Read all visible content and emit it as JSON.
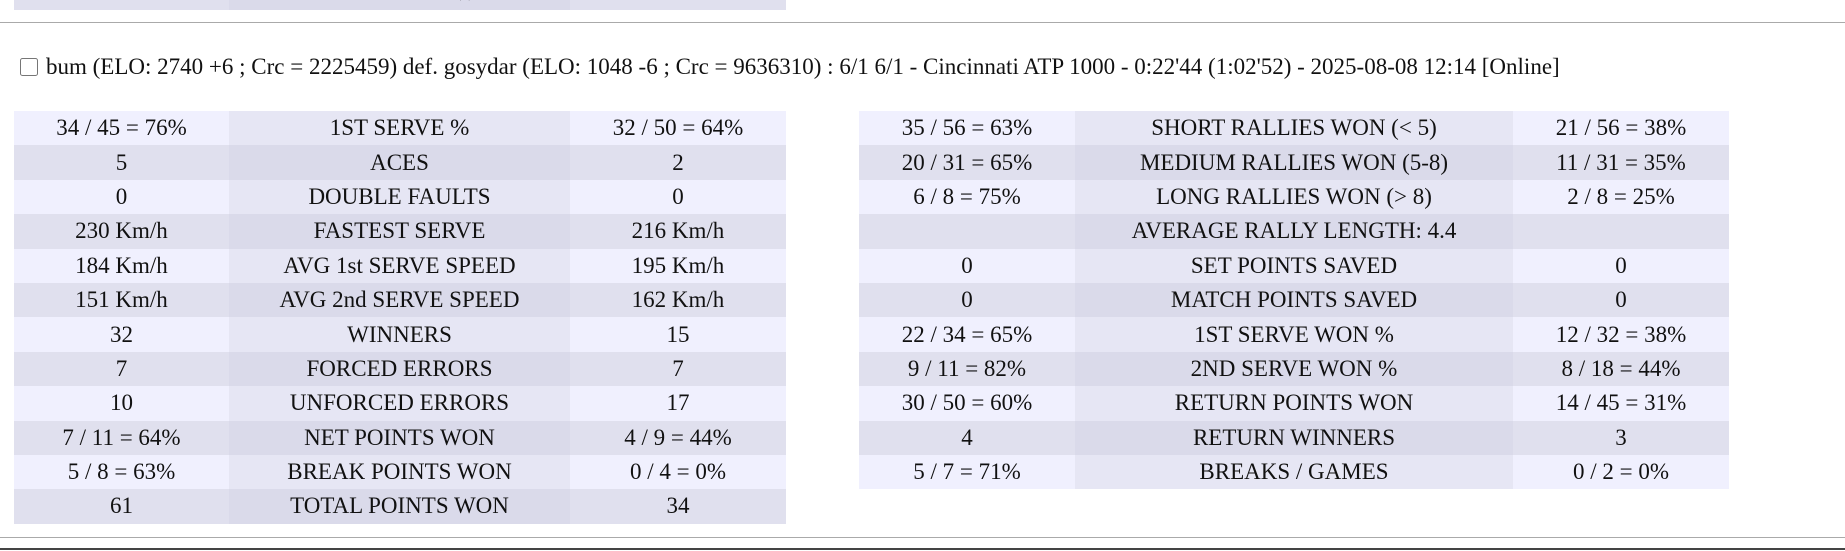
{
  "previous_tail": {
    "label": "TOTAL POINTS WON"
  },
  "header": {
    "text": "bum (ELO: 2740 +6 ; Crc = 2225459) def. gosydar (ELO: 1048 -6 ; Crc = 9636310) : 6/1 6/1 - Cincinnati ATP 1000 - 0:22'44 (1:02'52) - 2025-08-08 12:14 [Online]"
  },
  "left_table": {
    "rows": [
      [
        "34 / 45 = 76%",
        "1ST SERVE %",
        "32 / 50 = 64%"
      ],
      [
        "5",
        "ACES",
        "2"
      ],
      [
        "0",
        "DOUBLE FAULTS",
        "0"
      ],
      [
        "230 Km/h",
        "FASTEST SERVE",
        "216 Km/h"
      ],
      [
        "184 Km/h",
        "AVG 1st SERVE SPEED",
        "195 Km/h"
      ],
      [
        "151 Km/h",
        "AVG 2nd SERVE SPEED",
        "162 Km/h"
      ],
      [
        "32",
        "WINNERS",
        "15"
      ],
      [
        "7",
        "FORCED ERRORS",
        "7"
      ],
      [
        "10",
        "UNFORCED ERRORS",
        "17"
      ],
      [
        "7 / 11 = 64%",
        "NET POINTS WON",
        "4 / 9 = 44%"
      ],
      [
        "5 / 8 = 63%",
        "BREAK POINTS WON",
        "0 / 4 = 0%"
      ],
      [
        "61",
        "TOTAL POINTS WON",
        "34"
      ]
    ]
  },
  "right_table": {
    "rows": [
      [
        "35 / 56 = 63%",
        "SHORT RALLIES WON (< 5)",
        "21 / 56 = 38%"
      ],
      [
        "20 / 31 = 65%",
        "MEDIUM RALLIES WON (5-8)",
        "11 / 31 = 35%"
      ],
      [
        "6 / 8 = 75%",
        "LONG RALLIES WON (> 8)",
        "2 / 8 = 25%"
      ],
      [
        "AVERAGE RALLY LENGTH: 4.4"
      ],
      [
        "0",
        "SET POINTS SAVED",
        "0"
      ],
      [
        "0",
        "MATCH POINTS SAVED",
        "0"
      ],
      [
        "22 / 34 = 65%",
        "1ST SERVE WON %",
        "12 / 32 = 38%"
      ],
      [
        "9 / 11 = 82%",
        "2ND SERVE WON %",
        "8 / 18 = 44%"
      ],
      [
        "30 / 50 = 60%",
        "RETURN POINTS WON",
        "14 / 45 = 31%"
      ],
      [
        "4",
        "RETURN WINNERS",
        "3"
      ],
      [
        "5 / 7 = 71%",
        "BREAKS / GAMES",
        "0 / 2 = 0%"
      ]
    ]
  }
}
